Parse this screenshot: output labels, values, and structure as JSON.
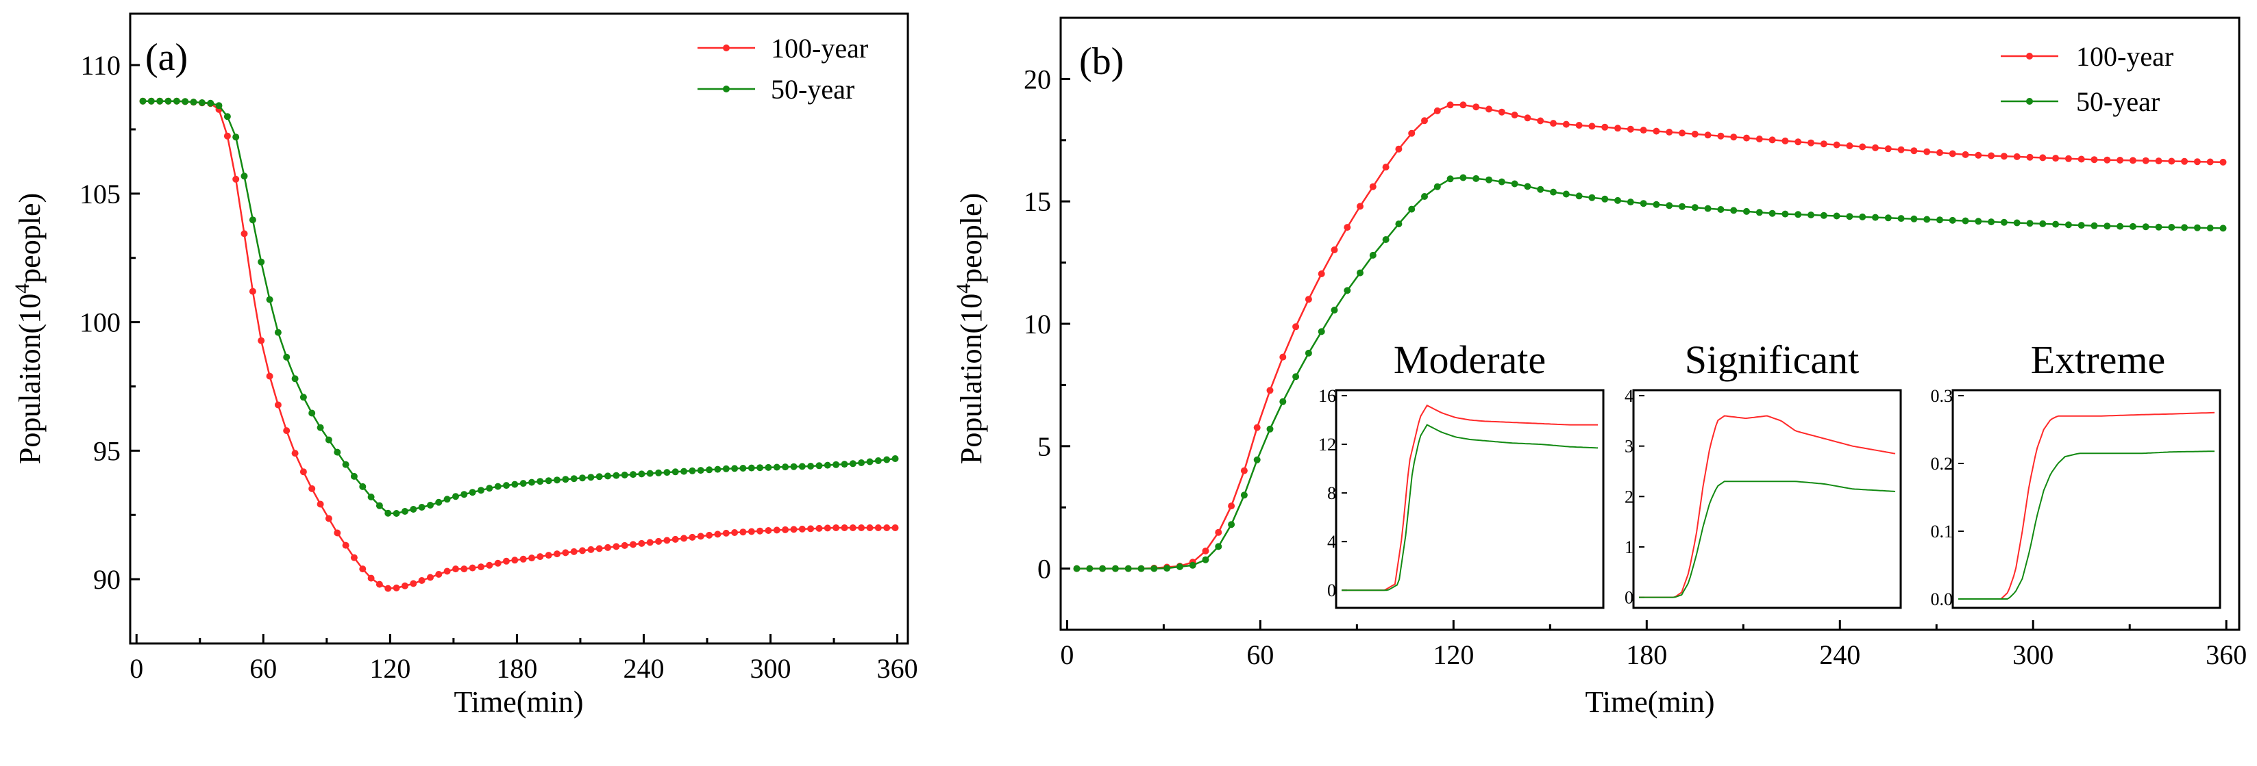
{
  "colors": {
    "red": "#ff2a2a",
    "green": "#138a13"
  },
  "chart_data": [
    {
      "id": "a",
      "type": "line",
      "panel_label": "(a)",
      "xlabel": "Time(min)",
      "ylabel_pre": "Populaiton(10",
      "ylabel_sup": "4",
      "ylabel_post": "people)",
      "xlim": [
        -3,
        365
      ],
      "ylim": [
        87.5,
        112
      ],
      "xticks": [
        0,
        60,
        120,
        180,
        240,
        300,
        360
      ],
      "xtick_labels": [
        "0",
        "60",
        "120",
        "180",
        "240",
        "300",
        "360"
      ],
      "yticks": [
        90,
        95,
        100,
        105,
        110
      ],
      "ytick_labels": [
        "90",
        "95",
        "100",
        "105",
        "110"
      ],
      "legend": [
        "100-year",
        "50-year"
      ],
      "series": [
        {
          "name": "100-year",
          "color": "red",
          "x": [
            3,
            20,
            36,
            40,
            45,
            50,
            55,
            60,
            65,
            70,
            75,
            80,
            85,
            90,
            95,
            100,
            105,
            110,
            115,
            120,
            125,
            130,
            140,
            150,
            155,
            165,
            175,
            185,
            200,
            220,
            240,
            260,
            280,
            300,
            315,
            330,
            345,
            360
          ],
          "y": [
            108.6,
            108.6,
            108.5,
            108.2,
            106.6,
            104.0,
            101.2,
            98.8,
            97.3,
            96.0,
            94.9,
            94.0,
            93.2,
            92.5,
            91.8,
            91.2,
            90.6,
            90.1,
            89.8,
            89.6,
            89.7,
            89.8,
            90.1,
            90.4,
            90.4,
            90.5,
            90.7,
            90.8,
            91.0,
            91.2,
            91.4,
            91.6,
            91.8,
            91.9,
            91.95,
            92.0,
            92.0,
            92.0
          ]
        },
        {
          "name": "50-year",
          "color": "green",
          "x": [
            3,
            20,
            38,
            42,
            47,
            52,
            57,
            62,
            67,
            72,
            77,
            82,
            87,
            92,
            97,
            102,
            107,
            112,
            117,
            120,
            130,
            140,
            150,
            160,
            170,
            180,
            190,
            205,
            220,
            240,
            260,
            280,
            300,
            320,
            340,
            360
          ],
          "y": [
            108.6,
            108.6,
            108.5,
            108.2,
            107.2,
            105.3,
            103.1,
            101.2,
            99.6,
            98.4,
            97.4,
            96.6,
            95.9,
            95.3,
            94.7,
            94.1,
            93.6,
            93.1,
            92.7,
            92.5,
            92.7,
            92.9,
            93.2,
            93.4,
            93.6,
            93.7,
            93.8,
            93.9,
            94.0,
            94.1,
            94.2,
            94.3,
            94.35,
            94.4,
            94.5,
            94.7
          ]
        }
      ]
    },
    {
      "id": "b",
      "type": "line",
      "panel_label": "(b)",
      "xlabel": "Time(min)",
      "ylabel_pre": "Population(10",
      "ylabel_sup": "4",
      "ylabel_post": "people)",
      "xlim": [
        -2,
        364
      ],
      "ylim": [
        -2.5,
        22.5
      ],
      "xticks": [
        0,
        60,
        120,
        180,
        240,
        300,
        360
      ],
      "xtick_labels": [
        "0",
        "60",
        "120",
        "180",
        "240",
        "300",
        "360"
      ],
      "yticks": [
        0,
        5,
        10,
        15,
        20
      ],
      "ytick_labels": [
        "0",
        "5",
        "10",
        "15",
        "20"
      ],
      "legend": [
        "100-year",
        "50-year"
      ],
      "series": [
        {
          "name": "100-year",
          "color": "red",
          "x": [
            3,
            25,
            35,
            40,
            45,
            50,
            55,
            60,
            65,
            70,
            75,
            80,
            85,
            90,
            95,
            100,
            105,
            110,
            115,
            120,
            130,
            140,
            150,
            160,
            170,
            180,
            200,
            220,
            240,
            260,
            280,
            300,
            320,
            340,
            360
          ],
          "y": [
            0,
            0,
            0.1,
            0.3,
            1.0,
            2.2,
            4.0,
            6.2,
            8.0,
            9.6,
            11.0,
            12.3,
            13.5,
            14.6,
            15.6,
            16.6,
            17.5,
            18.2,
            18.7,
            19.0,
            18.8,
            18.5,
            18.2,
            18.1,
            18.0,
            17.9,
            17.7,
            17.5,
            17.3,
            17.1,
            16.9,
            16.8,
            16.7,
            16.65,
            16.6
          ]
        },
        {
          "name": "50-year",
          "color": "green",
          "x": [
            3,
            30,
            40,
            45,
            50,
            55,
            60,
            65,
            70,
            75,
            80,
            85,
            90,
            95,
            100,
            105,
            110,
            115,
            120,
            130,
            140,
            150,
            160,
            180,
            200,
            220,
            240,
            260,
            280,
            300,
            320,
            340,
            360
          ],
          "y": [
            0,
            0,
            0.15,
            0.5,
            1.5,
            3.0,
            4.8,
            6.3,
            7.6,
            8.8,
            9.9,
            11.0,
            11.9,
            12.8,
            13.6,
            14.4,
            15.1,
            15.6,
            16.0,
            15.9,
            15.7,
            15.4,
            15.2,
            14.9,
            14.7,
            14.5,
            14.4,
            14.3,
            14.2,
            14.1,
            14.0,
            13.95,
            13.9
          ]
        }
      ]
    },
    {
      "id": "b-inset-moderate",
      "type": "line",
      "title": "Moderate",
      "xlim": [
        0,
        360
      ],
      "ylim": [
        -1,
        16
      ],
      "yticks": [
        0,
        4,
        8,
        12,
        16
      ],
      "ytick_labels": [
        "0",
        "4",
        "8",
        "12",
        "16"
      ],
      "series": [
        {
          "name": "100-year",
          "color": "red",
          "x": [
            0,
            60,
            75,
            85,
            95,
            110,
            120,
            140,
            160,
            180,
            200,
            240,
            280,
            320,
            360
          ],
          "y": [
            0,
            0,
            0.5,
            4.5,
            10.5,
            14.2,
            15.2,
            14.6,
            14.2,
            14.0,
            13.9,
            13.8,
            13.7,
            13.6,
            13.6
          ]
        },
        {
          "name": "50-year",
          "color": "green",
          "x": [
            0,
            65,
            80,
            90,
            100,
            110,
            120,
            140,
            160,
            180,
            200,
            240,
            280,
            320,
            360
          ],
          "y": [
            0,
            0,
            0.5,
            4.5,
            10.0,
            12.6,
            13.6,
            13.0,
            12.6,
            12.4,
            12.3,
            12.1,
            12.0,
            11.8,
            11.7
          ]
        }
      ]
    },
    {
      "id": "b-inset-significant",
      "type": "line",
      "title": "Significant",
      "xlim": [
        0,
        360
      ],
      "ylim": [
        -0.1,
        4
      ],
      "yticks": [
        0,
        1,
        2,
        3,
        4
      ],
      "ytick_labels": [
        "0",
        "1",
        "2",
        "3",
        "4"
      ],
      "series": [
        {
          "name": "100-year",
          "color": "red",
          "x": [
            0,
            50,
            60,
            70,
            80,
            90,
            100,
            110,
            120,
            150,
            180,
            200,
            220,
            260,
            300,
            360
          ],
          "y": [
            0,
            0,
            0.1,
            0.5,
            1.2,
            2.2,
            3.0,
            3.5,
            3.6,
            3.55,
            3.6,
            3.5,
            3.3,
            3.15,
            3.0,
            2.85
          ]
        },
        {
          "name": "50-year",
          "color": "green",
          "x": [
            0,
            50,
            60,
            70,
            80,
            90,
            100,
            110,
            120,
            150,
            180,
            220,
            260,
            300,
            360
          ],
          "y": [
            0,
            0,
            0.05,
            0.3,
            0.8,
            1.4,
            1.9,
            2.2,
            2.3,
            2.3,
            2.3,
            2.3,
            2.25,
            2.15,
            2.1
          ]
        }
      ]
    },
    {
      "id": "b-inset-extreme",
      "type": "line",
      "title": "Extreme",
      "xlim": [
        0,
        360
      ],
      "ylim": [
        -0.005,
        0.3
      ],
      "yticks": [
        0.0,
        0.1,
        0.2,
        0.3
      ],
      "ytick_labels": [
        "0.0",
        "0.1",
        "0.2",
        "0.3"
      ],
      "series": [
        {
          "name": "100-year",
          "color": "red",
          "x": [
            0,
            60,
            70,
            80,
            90,
            100,
            110,
            120,
            130,
            140,
            160,
            200,
            260,
            300,
            360
          ],
          "y": [
            0,
            0,
            0.01,
            0.04,
            0.1,
            0.17,
            0.22,
            0.25,
            0.265,
            0.27,
            0.27,
            0.27,
            0.272,
            0.273,
            0.275
          ]
        },
        {
          "name": "50-year",
          "color": "green",
          "x": [
            0,
            70,
            80,
            90,
            100,
            110,
            120,
            130,
            140,
            150,
            170,
            200,
            260,
            300,
            360
          ],
          "y": [
            0,
            0,
            0.01,
            0.03,
            0.07,
            0.12,
            0.16,
            0.185,
            0.2,
            0.21,
            0.215,
            0.215,
            0.215,
            0.217,
            0.218
          ]
        }
      ]
    }
  ]
}
